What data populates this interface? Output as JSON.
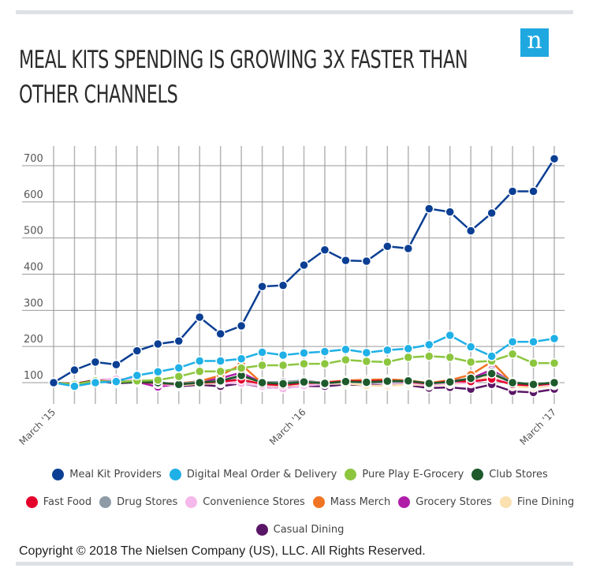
{
  "title": "MEAL KITS SPENDING IS GROWING 3X FASTER THAN OTHER CHANNELS",
  "logo_text": "n",
  "copyright": "Copyright © 2018 The Nielsen Company (US), LLC. All Rights Reserved.",
  "chart_data": {
    "type": "line",
    "title": "MEAL KITS SPENDING IS GROWING 3X FASTER THAN OTHER CHANNELS",
    "xlabel": "",
    "ylabel": "",
    "ylim": [
      100,
      700
    ],
    "yticks": [
      "100",
      "200",
      "300",
      "400",
      "500",
      "600",
      "700"
    ],
    "x_count": 25,
    "xtick_labels": [
      {
        "index": 0,
        "label": "March '15"
      },
      {
        "index": 12,
        "label": "March '16"
      },
      {
        "index": 24,
        "label": "March '17"
      }
    ],
    "grid": true,
    "legend_position": "bottom",
    "series": [
      {
        "name": "Meal Kit Providers",
        "color": "#0b3f93",
        "values": [
          100,
          135,
          157,
          150,
          188,
          207,
          215,
          281,
          235,
          257,
          366,
          369,
          425,
          467,
          438,
          436,
          477,
          471,
          581,
          572,
          520,
          569,
          629,
          629,
          719
        ]
      },
      {
        "name": "Digital Meal Order & Delivery",
        "color": "#1fb0e6",
        "values": [
          100,
          90,
          100,
          103,
          120,
          130,
          141,
          160,
          160,
          166,
          184,
          176,
          182,
          186,
          192,
          183,
          190,
          194,
          205,
          231,
          199,
          173,
          213,
          213,
          222
        ]
      },
      {
        "name": "Pure Play E-Grocery",
        "color": "#8cc63f",
        "values": [
          100,
          95,
          105,
          102,
          105,
          107,
          117,
          131,
          131,
          140,
          148,
          148,
          152,
          152,
          163,
          159,
          157,
          170,
          173,
          170,
          157,
          160,
          179,
          154,
          154
        ]
      },
      {
        "name": "Club Stores",
        "color": "#1e5a2c",
        "values": [
          100,
          96,
          106,
          100,
          102,
          100,
          95,
          100,
          105,
          120,
          100,
          97,
          102,
          98,
          103,
          101,
          104,
          105,
          98,
          102,
          112,
          125,
          100,
          95,
          100
        ]
      },
      {
        "name": "Fast Food",
        "color": "#e4002b",
        "values": [
          100,
          97,
          107,
          101,
          102,
          98,
          96,
          99,
          103,
          108,
          96,
          93,
          99,
          100,
          104,
          104,
          106,
          103,
          97,
          104,
          103,
          110,
          95,
          92,
          98
        ]
      },
      {
        "name": "Drug Stores",
        "color": "#8e9aa5",
        "values": [
          100,
          95,
          104,
          103,
          104,
          100,
          97,
          103,
          100,
          118,
          101,
          102,
          106,
          99,
          103,
          100,
          101,
          102,
          97,
          103,
          105,
          130,
          102,
          95,
          101
        ]
      },
      {
        "name": "Convenience Stores",
        "color": "#f5b8ea",
        "values": [
          100,
          93,
          108,
          110,
          110,
          96,
          93,
          102,
          99,
          98,
          90,
          83,
          92,
          96,
          103,
          100,
          97,
          100,
          93,
          100,
          98,
          112,
          97,
          92,
          95
        ]
      },
      {
        "name": "Mass Merch",
        "color": "#ef7423",
        "values": [
          100,
          96,
          107,
          102,
          103,
          99,
          98,
          104,
          120,
          150,
          98,
          95,
          100,
          101,
          106,
          108,
          109,
          106,
          99,
          107,
          122,
          158,
          98,
          92,
          97
        ]
      },
      {
        "name": "Grocery Stores",
        "color": "#b01ea8",
        "values": [
          100,
          95,
          104,
          101,
          102,
          88,
          97,
          103,
          112,
          128,
          99,
          96,
          102,
          99,
          103,
          104,
          101,
          101,
          99,
          104,
          111,
          136,
          100,
          94,
          100
        ]
      },
      {
        "name": "Fine Dining",
        "color": "#fbe0b0",
        "values": [
          100,
          94,
          105,
          104,
          103,
          98,
          92,
          97,
          98,
          120,
          92,
          91,
          95,
          96,
          98,
          92,
          91,
          95,
          92,
          96,
          100,
          120,
          90,
          86,
          93
        ]
      },
      {
        "name": "Casual Dining",
        "color": "#5a1666",
        "values": [
          100,
          95,
          105,
          98,
          101,
          103,
          90,
          94,
          90,
          98,
          88,
          85,
          91,
          90,
          95,
          93,
          99,
          93,
          85,
          87,
          82,
          95,
          76,
          73,
          82
        ]
      }
    ]
  },
  "legend_rows": [
    [
      0,
      1,
      2,
      3
    ],
    [
      4,
      5,
      6,
      7,
      8,
      9
    ],
    [
      10
    ]
  ]
}
